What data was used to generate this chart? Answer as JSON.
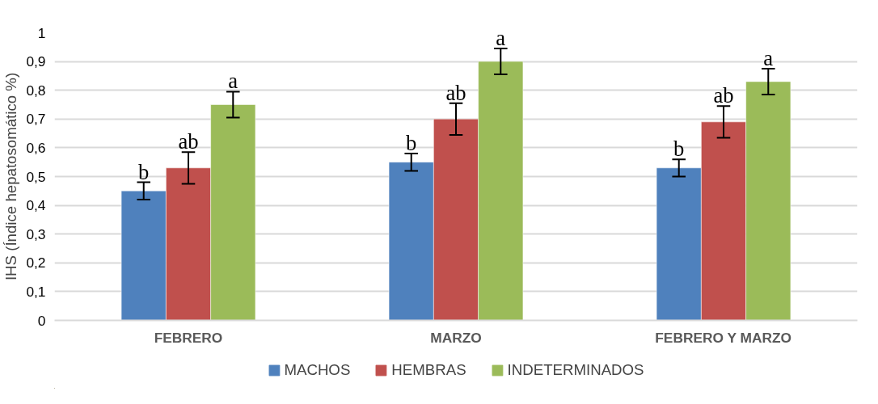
{
  "chart_data": {
    "type": "bar",
    "ylabel": "IHS (Índice hepatosomático %)",
    "categories": [
      "FEBRERO",
      "MARZO",
      "FEBRERO Y MARZO"
    ],
    "series": [
      {
        "name": "MACHOS",
        "color": "#4f81bd",
        "values": [
          0.45,
          0.55,
          0.53
        ],
        "errors": [
          0.03,
          0.03,
          0.03
        ],
        "value_labels": [
          "b",
          "b",
          "b"
        ]
      },
      {
        "name": "HEMBRAS",
        "color": "#c0504d",
        "values": [
          0.53,
          0.7,
          0.69
        ],
        "errors": [
          0.055,
          0.055,
          0.055
        ],
        "value_labels": [
          "ab",
          "ab",
          "ab"
        ]
      },
      {
        "name": "INDETERMINADOS",
        "color": "#9bbb59",
        "values": [
          0.75,
          0.9,
          0.83
        ],
        "errors": [
          0.045,
          0.045,
          0.045
        ],
        "value_labels": [
          "a",
          "a",
          "a"
        ]
      }
    ],
    "ylim": [
      0,
      1
    ],
    "yticks": [
      0,
      {
        "value": 0.1,
        "label": "0,1"
      },
      {
        "value": 0.2,
        "label": "0,2"
      },
      {
        "value": 0.3,
        "label": "0,3"
      },
      {
        "value": 0.4,
        "label": "0,4"
      },
      {
        "value": 0.5,
        "label": "0,5"
      },
      {
        "value": 0.6,
        "label": "0,6"
      },
      {
        "value": 0.7,
        "label": "0,7"
      },
      {
        "value": 0.8,
        "label": "0,8"
      },
      {
        "value": 0.9,
        "label": "0,9"
      },
      1
    ],
    "grid": "y",
    "legend": "bottom"
  }
}
